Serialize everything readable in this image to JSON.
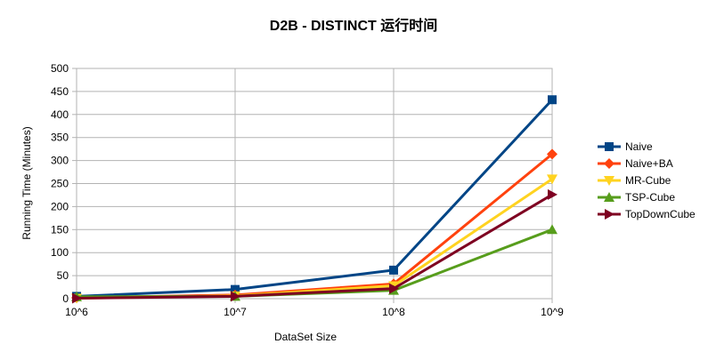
{
  "chart_data": {
    "type": "line",
    "title": "D2B - DISTINCT  运行时间",
    "xlabel": "DataSet Size",
    "ylabel": "Running Time (Minutes)",
    "categories": [
      "10^6",
      "10^7",
      "10^8",
      "10^9"
    ],
    "ylim": [
      0,
      500
    ],
    "yticks": [
      0,
      50,
      100,
      150,
      200,
      250,
      300,
      350,
      400,
      450,
      500
    ],
    "grid": true,
    "legend_position": "right",
    "series": [
      {
        "name": "Naive",
        "color": "#004586",
        "marker": "square",
        "values": [
          5,
          20,
          62,
          432
        ]
      },
      {
        "name": "Naive+BA",
        "color": "#ff420e",
        "marker": "diamond",
        "values": [
          2,
          8,
          32,
          314
        ]
      },
      {
        "name": "MR-Cube",
        "color": "#ffd320",
        "marker": "triangle-down",
        "values": [
          1,
          6,
          28,
          260
        ]
      },
      {
        "name": "TSP-Cube",
        "color": "#579d1c",
        "marker": "triangle-up",
        "values": [
          4,
          5,
          18,
          150
        ]
      },
      {
        "name": "TopDownCube",
        "color": "#7e0021",
        "marker": "triangle-right",
        "values": [
          1,
          5,
          22,
          226
        ]
      }
    ]
  }
}
